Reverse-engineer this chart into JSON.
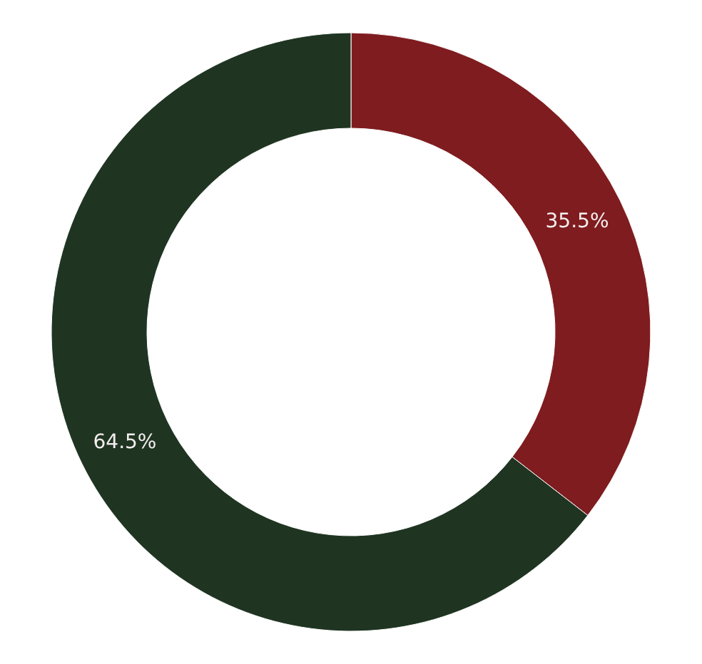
{
  "chart_data": {
    "type": "donut",
    "categories": [
      null,
      null
    ],
    "values": [
      35.5,
      64.5
    ],
    "colors": [
      "#7f1c1f",
      "#1f3522"
    ],
    "value_labels": [
      "35.5%",
      "64.5%"
    ]
  }
}
